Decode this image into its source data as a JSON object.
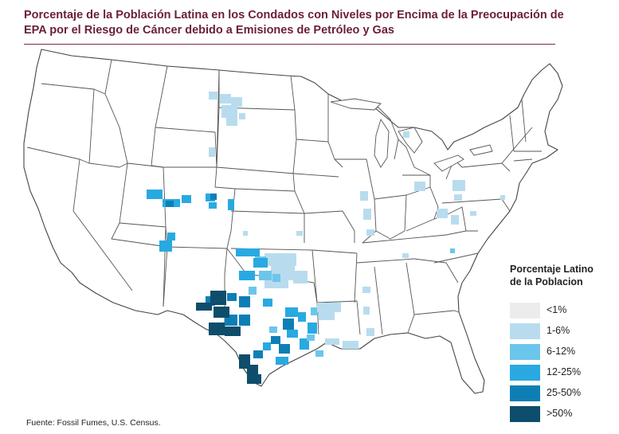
{
  "title": "Porcentaje de la Población Latina en los Condados con Niveles por Encima de la Preocupación de EPA por el Riesgo de Cáncer debido a Emisiones de Petróleo y Gas",
  "source": "Fuente: Fossil Fumes, U.S. Census.",
  "legend": {
    "title": "Porcentaje Latino de la Poblacion",
    "items": [
      {
        "label": "<1%",
        "color": "#ececec"
      },
      {
        "label": "1-6%",
        "color": "#b8dcee"
      },
      {
        "label": "6-12%",
        "color": "#6cc6ec"
      },
      {
        "label": "12-25%",
        "color": "#29a9e1"
      },
      {
        "label": "25-50%",
        "color": "#0d7fb5"
      },
      {
        "label": ">50%",
        "color": "#0e4d6b"
      }
    ]
  }
}
